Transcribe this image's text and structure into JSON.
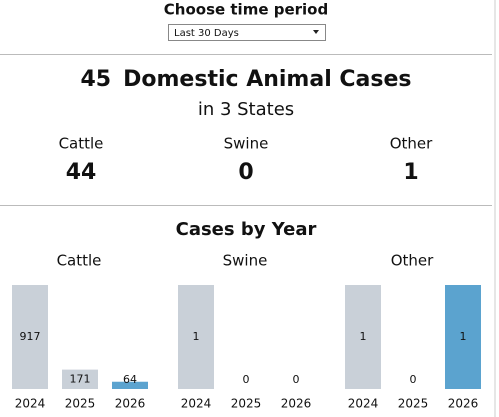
{
  "header": {
    "label": "Choose time period",
    "selected": "Last 30 Days"
  },
  "summary": {
    "count": 45,
    "title": "Domestic Animal Cases",
    "subtitle": "in 3 States"
  },
  "kpis": [
    {
      "label": "Cattle",
      "value": 44
    },
    {
      "label": "Swine",
      "value": 0
    },
    {
      "label": "Other",
      "value": 1
    }
  ],
  "section_title": "Cases by Year",
  "charts": [
    {
      "type": "bar",
      "title": "Cattle",
      "categories": [
        "2024",
        "2025",
        "2026"
      ],
      "values": [
        917,
        171,
        64
      ],
      "ylim": [
        0,
        917
      ],
      "colors": [
        "#c9d0d8",
        "#c9d0d8",
        "#5ba3cf"
      ]
    },
    {
      "type": "bar",
      "title": "Swine",
      "categories": [
        "2024",
        "2025",
        "2026"
      ],
      "values": [
        1,
        0,
        0
      ],
      "ylim": [
        0,
        1
      ],
      "colors": [
        "#c9d0d8",
        "#c9d0d8",
        "#5ba3cf"
      ]
    },
    {
      "type": "bar",
      "title": "Other",
      "categories": [
        "2024",
        "2025",
        "2026"
      ],
      "values": [
        1,
        0,
        1
      ],
      "ylim": [
        0,
        1
      ],
      "colors": [
        "#c9d0d8",
        "#c9d0d8",
        "#5ba3cf"
      ]
    }
  ]
}
